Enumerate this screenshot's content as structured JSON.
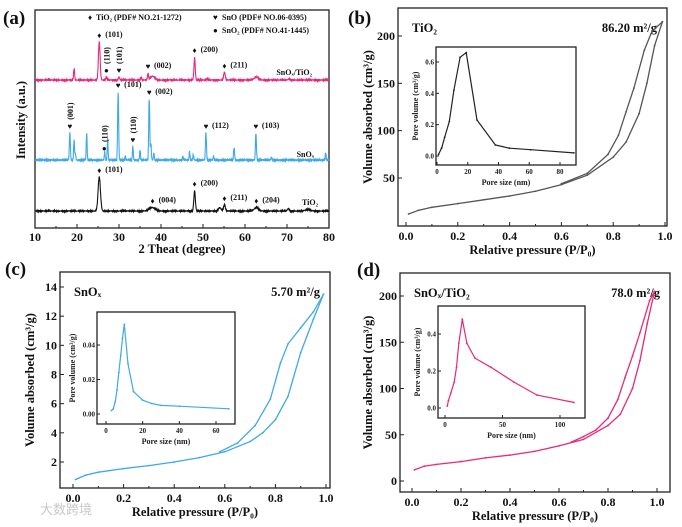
{
  "watermark": "大数跨境",
  "colors": {
    "tio2": "#111111",
    "snox": "#3fa9e8",
    "snox_tio2": "#e8287a",
    "axis": "#222222"
  },
  "chart_data": [
    {
      "panel": "(a)",
      "type": "line",
      "title": "",
      "xlabel": "2 Theat (degree)",
      "ylabel": "Intensity (a.u.)",
      "xlim": [
        10,
        80
      ],
      "xticks": [
        "10",
        "20",
        "30",
        "40",
        "50",
        "60",
        "70",
        "80"
      ],
      "legend": {
        "placement": "top",
        "entries": [
          {
            "marker": "♦",
            "label": "TiO₂ (PDF# NO.21-1272)"
          },
          {
            "marker": "♥",
            "label": "SnO (PDF# NO.06-0395)"
          },
          {
            "marker": "●",
            "label": "SnO₂ (PDF# NO.41-1445)"
          }
        ]
      },
      "series": [
        {
          "name": "SnOₓ/TiO₂",
          "color": "#e8287a",
          "peaks": [
            [
              19.3,
              0.3,
              0.12
            ],
            [
              25.3,
              1.0,
              0.2
            ],
            [
              27.0,
              0.08,
              0.15
            ],
            [
              30.0,
              0.08,
              0.15
            ],
            [
              35.3,
              0.06,
              0.12
            ],
            [
              36.9,
              0.17,
              0.12
            ],
            [
              38.0,
              0.1,
              0.5
            ],
            [
              48.0,
              0.6,
              0.15
            ],
            [
              51.0,
              0.05,
              0.12
            ],
            [
              55.1,
              0.2,
              0.2
            ],
            [
              62.7,
              0.08,
              0.5
            ],
            [
              70.5,
              0.03,
              0.2
            ]
          ],
          "annotations": [
            {
              "x": 25.3,
              "phase": "♦",
              "label": "(101)",
              "rot": false
            },
            {
              "x": 27.0,
              "phase": "●",
              "label": "(110)",
              "rot": true
            },
            {
              "x": 30.0,
              "phase": "♥",
              "label": "(101)",
              "rot": true
            },
            {
              "x": 36.9,
              "phase": "♥",
              "label": "(002)",
              "rot": false
            },
            {
              "x": 48.0,
              "phase": "♦",
              "label": "(200)",
              "rot": false
            },
            {
              "x": 55.1,
              "phase": "♦",
              "label": "(211)",
              "rot": false
            }
          ]
        },
        {
          "name": "SnOₓ",
          "color": "#3fa9e8",
          "peaks": [
            [
              18.3,
              0.4,
              0.12
            ],
            [
              19.3,
              0.3,
              0.1
            ],
            [
              19.6,
              0.1,
              0.1
            ],
            [
              22.3,
              0.4,
              0.1
            ],
            [
              26.6,
              0.12,
              0.1
            ],
            [
              27.3,
              0.3,
              0.1
            ],
            [
              29.8,
              1.0,
              0.12
            ],
            [
              31.5,
              0.06,
              0.1
            ],
            [
              33.3,
              0.2,
              0.1
            ],
            [
              35.0,
              0.15,
              0.1
            ],
            [
              37.2,
              0.9,
              0.12
            ],
            [
              37.6,
              0.25,
              0.1
            ],
            [
              38.3,
              0.1,
              0.1
            ],
            [
              45.2,
              0.05,
              0.1
            ],
            [
              46.8,
              0.12,
              0.1
            ],
            [
              47.7,
              0.08,
              0.1
            ],
            [
              50.7,
              0.4,
              0.12
            ],
            [
              52.5,
              0.06,
              0.1
            ],
            [
              57.4,
              0.18,
              0.12
            ],
            [
              62.6,
              0.4,
              0.12
            ],
            [
              66.3,
              0.04,
              0.1
            ],
            [
              79.2,
              0.1,
              0.1
            ]
          ],
          "annotations": [
            {
              "x": 18.3,
              "phase": "♥",
              "label": "(001)",
              "rot": true
            },
            {
              "x": 26.5,
              "phase": "●",
              "label": "(110)",
              "rot": true
            },
            {
              "x": 29.8,
              "phase": "♥",
              "label": "(101)",
              "rot": false
            },
            {
              "x": 33.3,
              "phase": "♥",
              "label": "(110)",
              "rot": true
            },
            {
              "x": 37.2,
              "phase": "♥",
              "label": "(002)",
              "rot": false
            },
            {
              "x": 50.7,
              "phase": "♥",
              "label": "(112)",
              "rot": false
            },
            {
              "x": 62.6,
              "phase": "♥",
              "label": "(103)",
              "rot": false
            }
          ]
        },
        {
          "name": "TiO₂",
          "color": "#111111",
          "peaks": [
            [
              25.3,
              1.0,
              0.28
            ],
            [
              37.9,
              0.1,
              0.7
            ],
            [
              48.0,
              0.6,
              0.18
            ],
            [
              54.0,
              0.1,
              0.3
            ],
            [
              55.1,
              0.18,
              0.22
            ],
            [
              62.7,
              0.1,
              0.5
            ],
            [
              70.3,
              0.07,
              0.2
            ],
            [
              75.0,
              0.04,
              0.6
            ]
          ],
          "annotations": [
            {
              "x": 25.3,
              "phase": "♦",
              "label": "(101)",
              "rot": false
            },
            {
              "x": 38.0,
              "phase": "♦",
              "label": "(004)",
              "rot": false
            },
            {
              "x": 48.0,
              "phase": "♦",
              "label": "(200)",
              "rot": false
            },
            {
              "x": 55.1,
              "phase": "♦",
              "label": "(211)",
              "rot": false
            },
            {
              "x": 62.7,
              "phase": "♦",
              "label": "(204)",
              "rot": false
            }
          ]
        }
      ]
    },
    {
      "panel": "(b)",
      "type": "line",
      "sample": "TiO₂",
      "bet": "86.20 m²/g",
      "color": "#555555",
      "xlabel": "Relative pressure (P/P₀)",
      "ylabel": "Volume absorbed (cm³/g)",
      "xlim": [
        0,
        1
      ],
      "xticks": [
        "0.0",
        "0.2",
        "0.4",
        "0.6",
        "0.8",
        "1.0"
      ],
      "yticks": [
        [
          "50",
          50
        ],
        [
          "100",
          100
        ],
        [
          "150",
          150
        ],
        [
          "200",
          200
        ]
      ],
      "adsorption": [
        [
          0.01,
          12
        ],
        [
          0.05,
          16
        ],
        [
          0.1,
          19
        ],
        [
          0.2,
          23
        ],
        [
          0.3,
          27
        ],
        [
          0.4,
          31
        ],
        [
          0.5,
          36
        ],
        [
          0.6,
          43
        ],
        [
          0.7,
          53
        ],
        [
          0.8,
          72
        ],
        [
          0.85,
          88
        ],
        [
          0.9,
          118
        ],
        [
          0.93,
          150
        ],
        [
          0.96,
          190
        ],
        [
          0.99,
          215
        ]
      ],
      "desorption": [
        [
          0.99,
          215
        ],
        [
          0.95,
          205
        ],
        [
          0.92,
          185
        ],
        [
          0.88,
          145
        ],
        [
          0.85,
          120
        ],
        [
          0.82,
          95
        ],
        [
          0.78,
          75
        ],
        [
          0.7,
          55
        ],
        [
          0.6,
          44
        ]
      ],
      "inset": {
        "xlabel": "Pore size (nm)",
        "ylabel": "Pore volume (cm³/g)",
        "xticks": [
          [
            "0",
            0
          ],
          [
            "20",
            20
          ],
          [
            "40",
            40
          ],
          [
            "60",
            60
          ],
          [
            "80",
            80
          ]
        ],
        "yticks": [
          [
            "0.0",
            0
          ],
          [
            "0.2",
            0.2
          ],
          [
            "0.4",
            0.4
          ],
          [
            "0.6",
            0.6
          ]
        ],
        "points": [
          [
            1,
            0.01
          ],
          [
            3,
            0.05
          ],
          [
            5,
            0.12
          ],
          [
            8,
            0.22
          ],
          [
            11,
            0.42
          ],
          [
            15,
            0.63
          ],
          [
            19,
            0.66
          ],
          [
            26,
            0.23
          ],
          [
            38,
            0.07
          ],
          [
            47,
            0.05
          ],
          [
            61,
            0.04
          ],
          [
            89,
            0.02
          ]
        ]
      }
    },
    {
      "panel": "(c)",
      "type": "line",
      "sample": "SnOₓ",
      "bet": "5.70 m²/g",
      "color": "#3fa9e8",
      "xlabel": "Relative pressure (P/P₀)",
      "ylabel": "Volume absorbed (cm³/g)",
      "xlim": [
        0,
        1
      ],
      "xticks": [
        "0.0",
        "0.2",
        "0.4",
        "0.6",
        "0.8",
        "1.0"
      ],
      "yticks": [
        [
          "2",
          2
        ],
        [
          "4",
          4
        ],
        [
          "6",
          6
        ],
        [
          "8",
          8
        ],
        [
          "10",
          10
        ],
        [
          "12",
          12
        ],
        [
          "14",
          14
        ]
      ],
      "adsorption": [
        [
          0.01,
          0.8
        ],
        [
          0.05,
          1.1
        ],
        [
          0.1,
          1.3
        ],
        [
          0.2,
          1.55
        ],
        [
          0.3,
          1.75
        ],
        [
          0.4,
          2.0
        ],
        [
          0.5,
          2.3
        ],
        [
          0.6,
          2.7
        ],
        [
          0.7,
          3.4
        ],
        [
          0.75,
          4.0
        ],
        [
          0.8,
          4.9
        ],
        [
          0.85,
          6.5
        ],
        [
          0.9,
          9.5
        ],
        [
          0.95,
          11.8
        ],
        [
          0.99,
          13.5
        ]
      ],
      "desorption": [
        [
          0.99,
          13.5
        ],
        [
          0.95,
          12.3
        ],
        [
          0.9,
          11.2
        ],
        [
          0.85,
          10.1
        ],
        [
          0.82,
          8.8
        ],
        [
          0.78,
          6.3
        ],
        [
          0.72,
          4.5
        ],
        [
          0.65,
          3.3
        ],
        [
          0.58,
          2.7
        ]
      ],
      "inset": {
        "xlabel": "Pore size (nm)",
        "ylabel": "Pore volume (cm³/g)",
        "xticks": [
          [
            "0",
            0
          ],
          [
            "20",
            20
          ],
          [
            "40",
            40
          ],
          [
            "60",
            60
          ]
        ],
        "yticks": [
          [
            "0.00",
            0
          ],
          [
            "0.02",
            0.02
          ],
          [
            "0.04",
            0.04
          ]
        ],
        "points": [
          [
            3,
            0.002
          ],
          [
            4,
            0.003
          ],
          [
            5,
            0.007
          ],
          [
            6,
            0.014
          ],
          [
            7,
            0.024
          ],
          [
            8,
            0.034
          ],
          [
            9,
            0.044
          ],
          [
            10,
            0.052
          ],
          [
            12,
            0.029
          ],
          [
            15,
            0.013
          ],
          [
            20,
            0.008
          ],
          [
            25,
            0.006
          ],
          [
            30,
            0.005
          ],
          [
            40,
            0.0045
          ],
          [
            67,
            0.003
          ]
        ]
      }
    },
    {
      "panel": "(d)",
      "type": "line",
      "sample": "SnOₓ/TiO₂",
      "bet": "78.0 m²/g",
      "color": "#e8287a",
      "xlabel": "Relative pressure (P/P₀)",
      "ylabel": "Volume absorbed (cm³/g)",
      "xlim": [
        0,
        1
      ],
      "xticks": [
        "0.0",
        "0.2",
        "0.4",
        "0.6",
        "0.8",
        "1.0"
      ],
      "yticks": [
        [
          "0",
          0
        ],
        [
          "50",
          50
        ],
        [
          "100",
          100
        ],
        [
          "150",
          150
        ],
        [
          "200",
          200
        ]
      ],
      "adsorption": [
        [
          0.01,
          12
        ],
        [
          0.05,
          16
        ],
        [
          0.1,
          18
        ],
        [
          0.2,
          21
        ],
        [
          0.3,
          25
        ],
        [
          0.4,
          28
        ],
        [
          0.5,
          32
        ],
        [
          0.6,
          38
        ],
        [
          0.7,
          45
        ],
        [
          0.8,
          60
        ],
        [
          0.85,
          72
        ],
        [
          0.9,
          100
        ],
        [
          0.93,
          130
        ],
        [
          0.96,
          170
        ],
        [
          0.99,
          205
        ]
      ],
      "desorption": [
        [
          0.99,
          205
        ],
        [
          0.97,
          195
        ],
        [
          0.93,
          160
        ],
        [
          0.9,
          135
        ],
        [
          0.87,
          112
        ],
        [
          0.84,
          88
        ],
        [
          0.8,
          68
        ],
        [
          0.75,
          55
        ],
        [
          0.7,
          48
        ],
        [
          0.65,
          42
        ]
      ],
      "inset": {
        "xlabel": "Pore size (nm)",
        "ylabel": "Pore volume (cm³/g)",
        "xticks": [
          [
            "0",
            0
          ],
          [
            "50",
            50
          ],
          [
            "100",
            100
          ]
        ],
        "yticks": [
          [
            "0.0",
            0
          ],
          [
            "0.2",
            0.2
          ],
          [
            "0.4",
            0.4
          ]
        ],
        "points": [
          [
            2,
            0.01
          ],
          [
            3,
            0.04
          ],
          [
            5,
            0.08
          ],
          [
            8,
            0.14
          ],
          [
            10,
            0.22
          ],
          [
            12,
            0.35
          ],
          [
            15,
            0.48
          ],
          [
            19,
            0.35
          ],
          [
            26,
            0.27
          ],
          [
            40,
            0.22
          ],
          [
            60,
            0.14
          ],
          [
            80,
            0.07
          ],
          [
            112,
            0.03
          ]
        ]
      }
    }
  ]
}
